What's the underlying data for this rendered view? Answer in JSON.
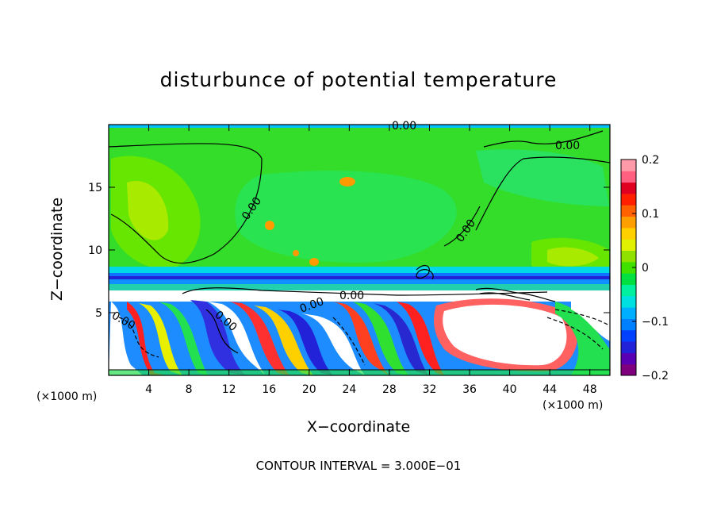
{
  "chart_data": {
    "type": "heatmap",
    "title": "disturbunce of potential temperature",
    "xlabel": "X−coordinate",
    "ylabel": "Z−coordinate",
    "x_unit_left": "(×1000 m)",
    "x_unit_right": "(×1000 m)",
    "footer": "CONTOUR INTERVAL = 3.000E−01",
    "xlim": [
      0,
      50
    ],
    "ylim": [
      0,
      20
    ],
    "x_ticks": [
      4,
      8,
      12,
      16,
      20,
      24,
      28,
      32,
      36,
      40,
      44,
      48
    ],
    "y_ticks": [
      5,
      10,
      15
    ],
    "colorbar": {
      "range": [
        -0.2,
        0.2
      ],
      "tick_values": [
        0.2,
        0.1,
        0,
        -0.1,
        -0.2
      ],
      "tick_labels": [
        "0.2",
        "0.1",
        "0",
        "−0.1",
        "−0.2"
      ],
      "colors": [
        "#7f007f",
        "#5a00b4",
        "#2222d8",
        "#0040ff",
        "#0080ff",
        "#00b0ff",
        "#00e0e0",
        "#00f0a0",
        "#00e040",
        "#40e000",
        "#90e000",
        "#e0f000",
        "#ffd000",
        "#ffa000",
        "#ff6000",
        "#ff2000",
        "#e00020",
        "#ff6080",
        "#ff9aa8"
      ]
    },
    "contour_labels": [
      "0.00",
      "0.00",
      "0.00",
      "0.00",
      "0.00",
      "0.00",
      "0.00",
      "0.00"
    ]
  }
}
